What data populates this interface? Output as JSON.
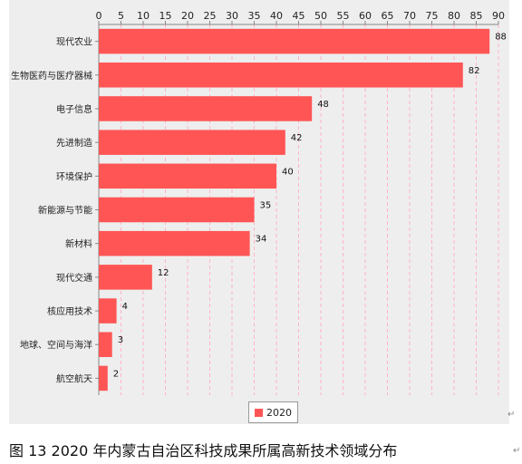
{
  "colors": {
    "bar": "#ff5555",
    "background": "#eeeeee",
    "grid": "#ffb3c6",
    "axis": "#888888"
  },
  "chart_data": {
    "type": "bar",
    "orientation": "horizontal",
    "categories": [
      "现代农业",
      "生物医药与医疗器械",
      "电子信息",
      "先进制造",
      "环境保护",
      "新能源与节能",
      "新材料",
      "现代交通",
      "核应用技术",
      "地球、空间与海洋",
      "航空航天"
    ],
    "series": [
      {
        "name": "2020",
        "values": [
          88,
          82,
          48,
          42,
          40,
          35,
          34,
          12,
          4,
          3,
          2
        ]
      }
    ],
    "x_ticks": [
      0,
      5,
      10,
      15,
      20,
      25,
      30,
      35,
      40,
      45,
      50,
      55,
      60,
      65,
      70,
      75,
      80,
      85,
      90
    ],
    "xlim": [
      0,
      90
    ],
    "x_axis_position": "top",
    "grid": true,
    "legend_position": "bottom-center",
    "data_labels": true
  },
  "legend": {
    "label": "2020"
  },
  "caption": "图 13   2020 年内蒙古自治区科技成果所属高新技术领域分布",
  "para_mark": "↵"
}
